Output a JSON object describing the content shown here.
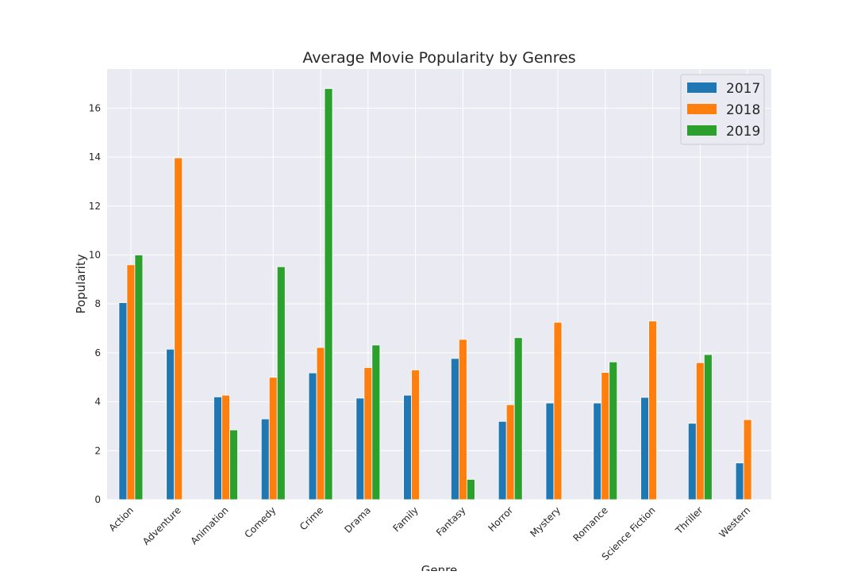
{
  "chart_data": {
    "type": "bar",
    "title": "Average Movie Popularity by Genres",
    "xlabel": "Genre",
    "ylabel": "Popularity",
    "ylim": [
      0,
      17.6
    ],
    "yticks": [
      0,
      2,
      4,
      6,
      8,
      10,
      12,
      14,
      16
    ],
    "grid": true,
    "legend_position": "top-right",
    "categories": [
      "Action",
      "Adventure",
      "Animation",
      "Comedy",
      "Crime",
      "Drama",
      "Family",
      "Fantasy",
      "Horror",
      "Mystery",
      "Romance",
      "Science Fiction",
      "Thriller",
      "Western"
    ],
    "series": [
      {
        "name": "2017",
        "color": "#1f77b4",
        "values": [
          8.05,
          6.15,
          4.2,
          3.3,
          5.18,
          4.15,
          4.27,
          5.77,
          3.2,
          3.95,
          3.95,
          4.18,
          3.12,
          1.5
        ]
      },
      {
        "name": "2018",
        "color": "#ff7f0e",
        "values": [
          9.6,
          13.97,
          4.27,
          5.0,
          6.22,
          5.4,
          5.3,
          6.55,
          3.88,
          7.25,
          5.2,
          7.3,
          5.6,
          3.27
        ]
      },
      {
        "name": "2019",
        "color": "#2ca02c",
        "values": [
          10.0,
          null,
          2.85,
          9.52,
          16.8,
          6.32,
          null,
          0.83,
          6.62,
          null,
          5.63,
          null,
          5.93,
          null
        ]
      }
    ],
    "colors": {
      "plot_background": "#eaeaf2",
      "grid": "#ffffff"
    }
  }
}
